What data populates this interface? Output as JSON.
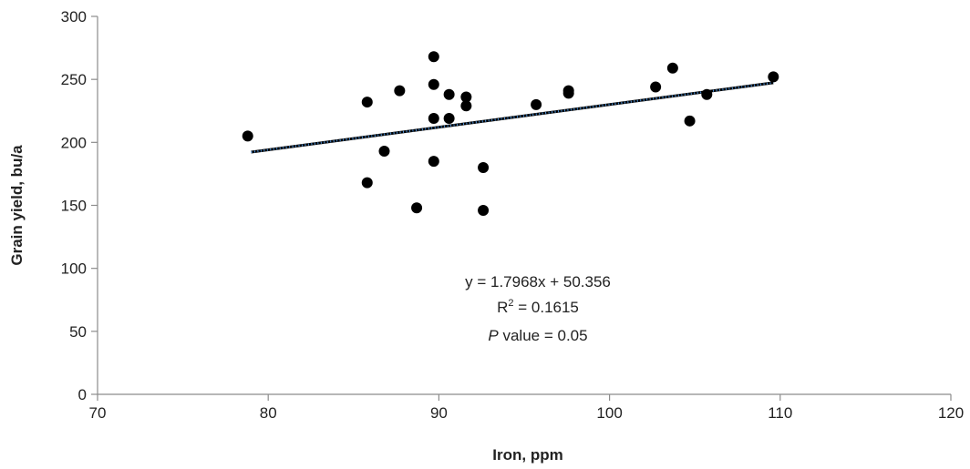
{
  "chart_data": {
    "type": "scatter",
    "title": "",
    "xlabel": "Iron, ppm",
    "ylabel": "Grain yield, bu/a",
    "xlim": [
      70,
      120
    ],
    "ylim": [
      0,
      300
    ],
    "xticks": [
      70,
      80,
      90,
      100,
      110,
      120
    ],
    "yticks": [
      0,
      50,
      100,
      150,
      200,
      250,
      300
    ],
    "grid": false,
    "series": [
      {
        "points": [
          {
            "x": 78.8,
            "y": 205
          },
          {
            "x": 85.8,
            "y": 232
          },
          {
            "x": 85.8,
            "y": 168
          },
          {
            "x": 86.8,
            "y": 193
          },
          {
            "x": 87.7,
            "y": 241
          },
          {
            "x": 88.7,
            "y": 148
          },
          {
            "x": 89.7,
            "y": 268
          },
          {
            "x": 89.7,
            "y": 246
          },
          {
            "x": 89.7,
            "y": 219
          },
          {
            "x": 89.7,
            "y": 185
          },
          {
            "x": 90.6,
            "y": 238
          },
          {
            "x": 90.6,
            "y": 219
          },
          {
            "x": 91.6,
            "y": 236
          },
          {
            "x": 91.6,
            "y": 229
          },
          {
            "x": 92.6,
            "y": 180
          },
          {
            "x": 92.6,
            "y": 146
          },
          {
            "x": 95.7,
            "y": 230
          },
          {
            "x": 97.6,
            "y": 241
          },
          {
            "x": 97.6,
            "y": 239
          },
          {
            "x": 102.7,
            "y": 244
          },
          {
            "x": 103.7,
            "y": 259
          },
          {
            "x": 104.7,
            "y": 217
          },
          {
            "x": 105.7,
            "y": 238
          },
          {
            "x": 109.6,
            "y": 252
          }
        ]
      }
    ],
    "trendline": {
      "slope": 1.7968,
      "intercept": 50.356,
      "x_range": [
        79,
        109.6
      ],
      "color": "#4a90d9"
    },
    "annotations": {
      "equation": "y = 1.7968x + 50.356",
      "r2_prefix": "R",
      "r2_sup": "2",
      "r2_value": " = 0.1615",
      "p_italic": "P",
      "p_rest": " value = 0.05"
    }
  }
}
